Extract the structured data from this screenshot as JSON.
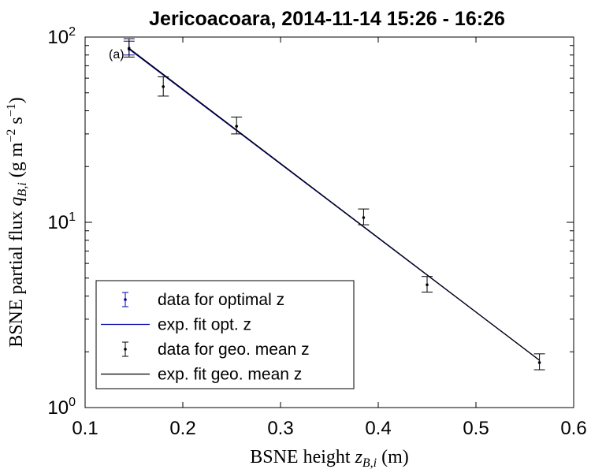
{
  "chart_data": {
    "type": "scatter",
    "title": "Jericoacoara, 2014-11-14 15:26 - 16:26",
    "xlabel": "BSNE height z_{B,i} (m)",
    "ylabel": "BSNE partial flux q_{B,i} (g m^{-2} s^{-1})",
    "xlim": [
      0.1,
      0.6
    ],
    "ylim": [
      1,
      100
    ],
    "yscale": "log",
    "xticks": [
      "0.1",
      "0.2",
      "0.3",
      "0.4",
      "0.5",
      "0.6"
    ],
    "yticks": [
      {
        "base": "10",
        "exp": "0"
      },
      {
        "base": "10",
        "exp": "1"
      },
      {
        "base": "10",
        "exp": "2"
      }
    ],
    "annotation": "(a)",
    "legend_position": "bottom-left",
    "series": [
      {
        "name": "data for optimal z",
        "kind": "errorbar",
        "color": "#0000aa",
        "points": [
          {
            "x": 0.145,
            "y": 87,
            "err_low": 80,
            "err_high": 95
          }
        ]
      },
      {
        "name": "exp. fit opt. z",
        "kind": "line",
        "color": "#0000aa",
        "x": [
          0.145,
          0.565
        ],
        "y": [
          86,
          1.8
        ]
      },
      {
        "name": "data for geo. mean z",
        "kind": "errorbar",
        "color": "#000000",
        "points": [
          {
            "x": 0.145,
            "y": 86,
            "err_low": 78,
            "err_high": 98
          },
          {
            "x": 0.18,
            "y": 54,
            "err_low": 48,
            "err_high": 61
          },
          {
            "x": 0.255,
            "y": 33,
            "err_low": 30,
            "err_high": 37
          },
          {
            "x": 0.385,
            "y": 10.6,
            "err_low": 9.7,
            "err_high": 11.8
          },
          {
            "x": 0.45,
            "y": 4.6,
            "err_low": 4.2,
            "err_high": 5.1
          },
          {
            "x": 0.565,
            "y": 1.75,
            "err_low": 1.6,
            "err_high": 1.95
          }
        ]
      },
      {
        "name": "exp. fit geo. mean z",
        "kind": "line",
        "color": "#000000",
        "x": [
          0.145,
          0.565
        ],
        "y": [
          87,
          1.8
        ]
      }
    ]
  }
}
